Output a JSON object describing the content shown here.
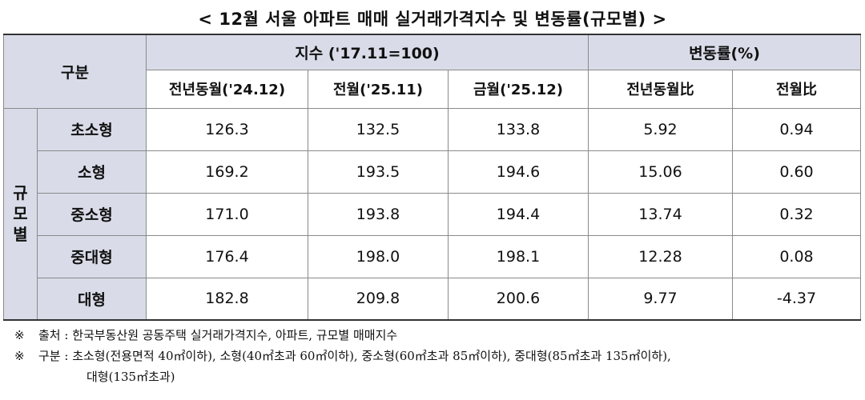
{
  "title": "< 12월 서울 아파트 매매 실거래가격지수 및 변동률(규모별) >",
  "table": {
    "col_group_label": "구분",
    "index_group_label": "지수 ('17.11=100)",
    "change_group_label": "변동률(%)",
    "sub_headers": [
      "전년동월('24.12)",
      "전월('25.11)",
      "금월('25.12)",
      "전년동월比",
      "전월比"
    ],
    "side_label": "규모별",
    "rows": [
      {
        "label": "초소형",
        "values": [
          "126.3",
          "132.5",
          "133.8",
          "5.92",
          "0.94"
        ]
      },
      {
        "label": "소형",
        "values": [
          "169.2",
          "193.5",
          "194.6",
          "15.06",
          "0.60"
        ]
      },
      {
        "label": "중소형",
        "values": [
          "171.0",
          "193.8",
          "194.4",
          "13.74",
          "0.32"
        ]
      },
      {
        "label": "중대형",
        "values": [
          "176.4",
          "198.0",
          "198.1",
          "12.28",
          "0.08"
        ]
      },
      {
        "label": "대형",
        "values": [
          "182.8",
          "209.8",
          "200.6",
          "9.77",
          "-4.37"
        ]
      }
    ]
  },
  "notes": {
    "mark": "※",
    "source": "출처 : 한국부동산원 공동주택 실거래가격지수, 아파트, 규모별 매매지수",
    "classification_1": "구분 : 초소형(전용면적 40㎡이하), 소형(40㎡초과 60㎡이하), 중소형(60㎡초과 85㎡이하), 중대형(85㎡초과 135㎡이하),",
    "classification_2": "대형(135㎡초과)"
  },
  "colors": {
    "header_bg": "#d9dce8",
    "border": "#8a8a8a"
  }
}
